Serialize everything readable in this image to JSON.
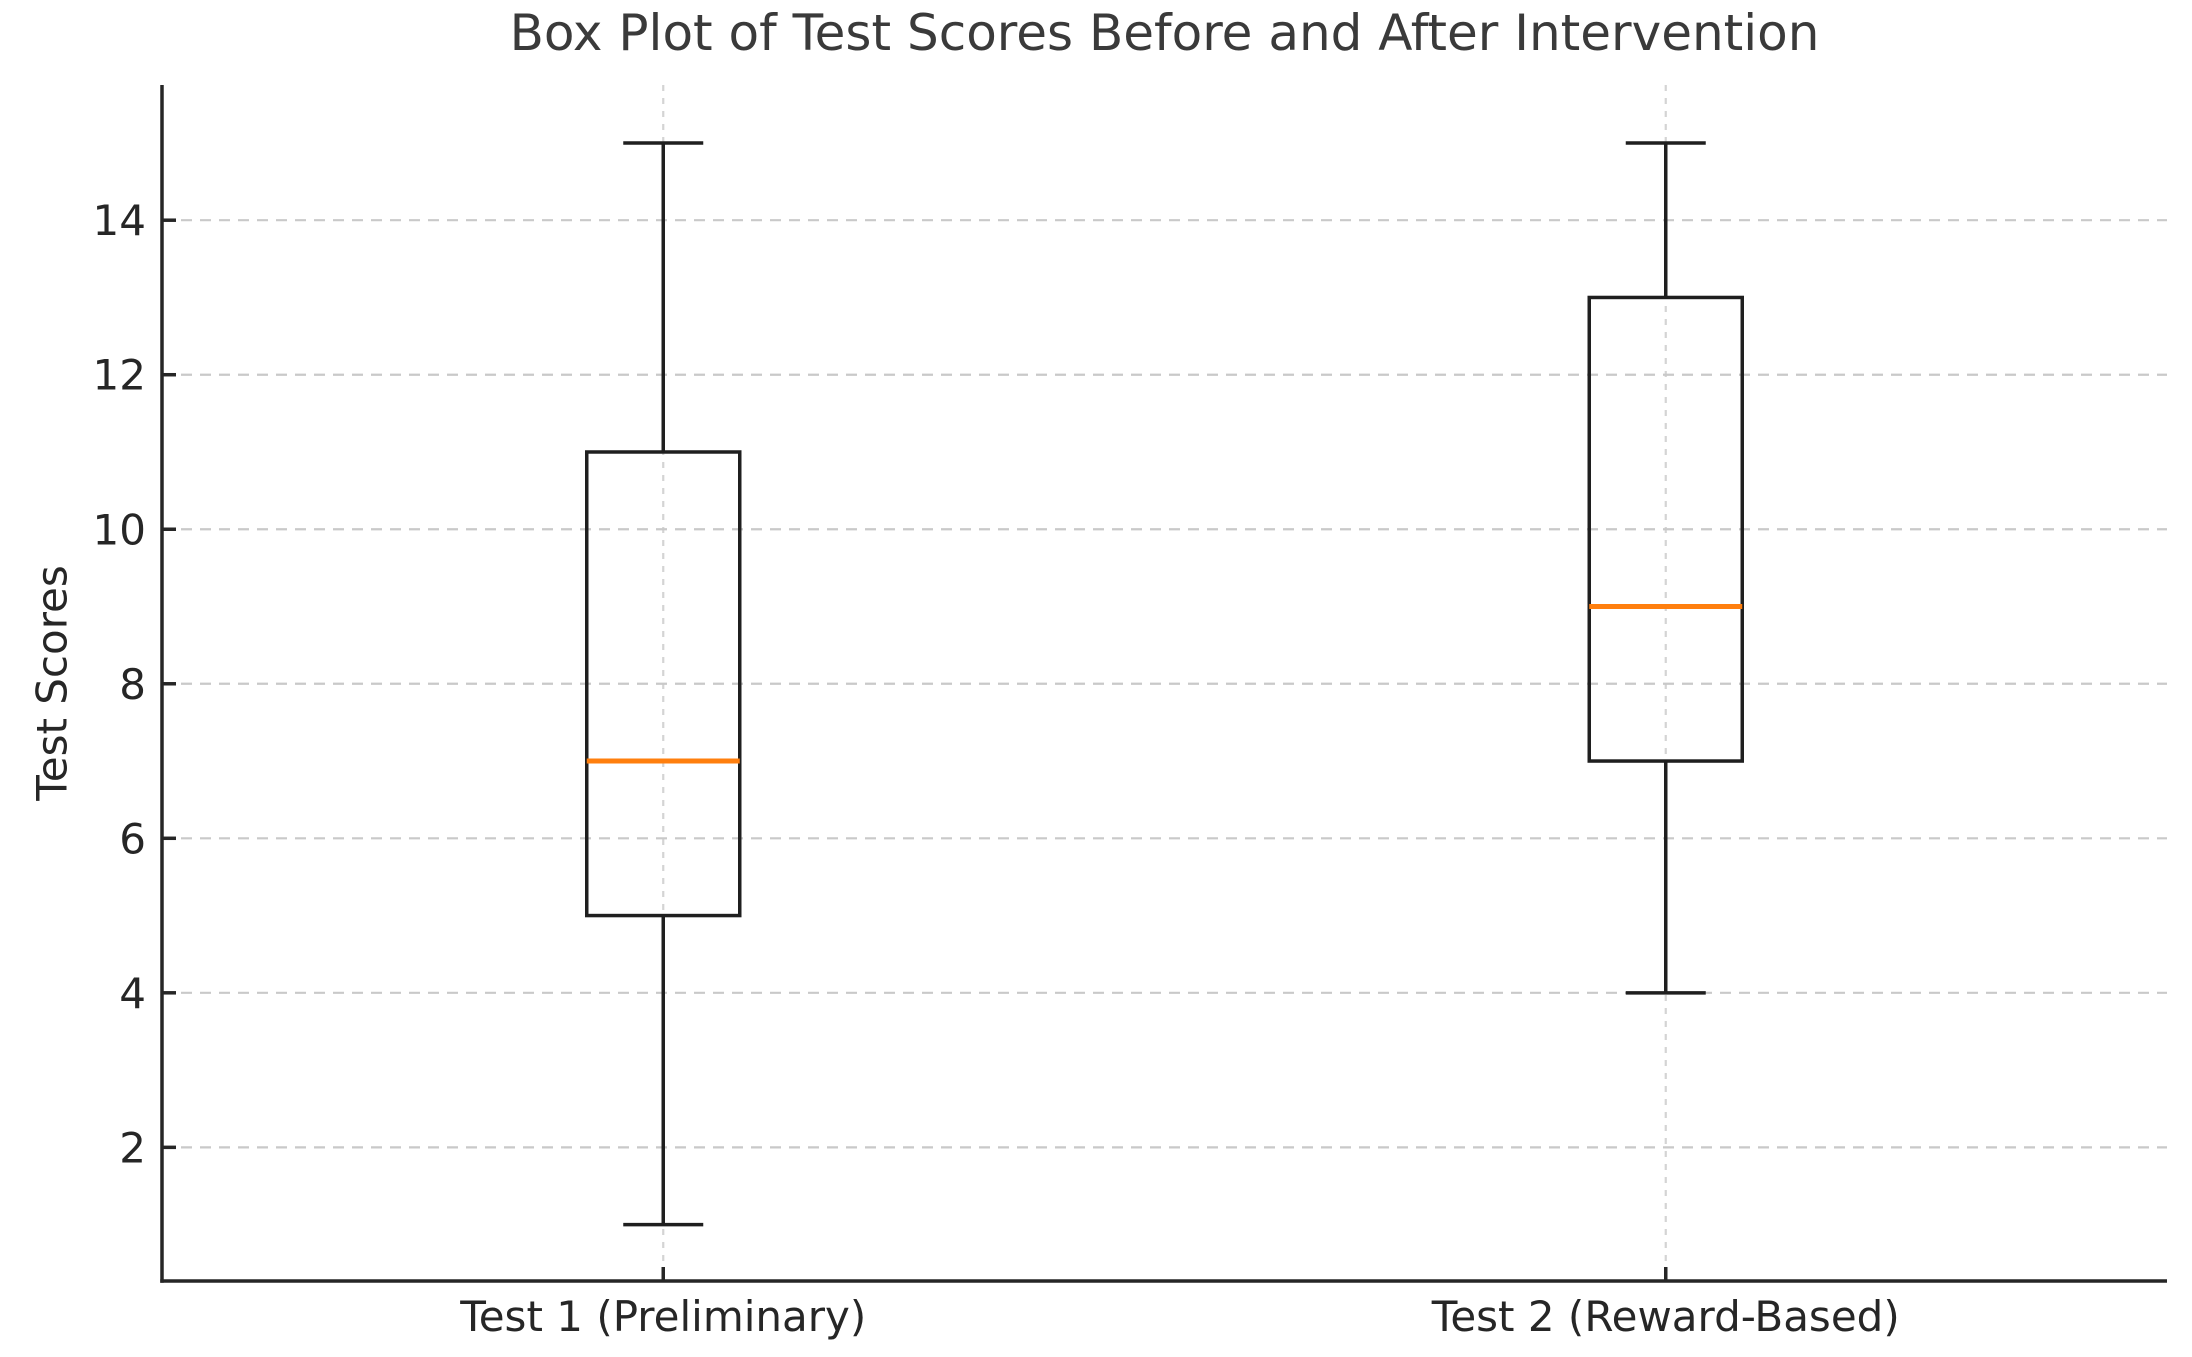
{
  "chart_data": {
    "type": "boxplot",
    "title": "Box Plot of Test Scores Before and After Intervention",
    "xlabel": "",
    "ylabel": "Test Scores",
    "categories": [
      "Test 1 (Preliminary)",
      "Test 2 (Reward-Based)"
    ],
    "series": [
      {
        "name": "Test 1 (Preliminary)",
        "whisker_low": 1,
        "q1": 5,
        "median": 7,
        "q3": 11,
        "whisker_high": 15
      },
      {
        "name": "Test 2 (Reward-Based)",
        "whisker_low": 4,
        "q1": 7,
        "median": 9,
        "q3": 13,
        "whisker_high": 15
      }
    ],
    "yticks": [
      2,
      4,
      6,
      8,
      10,
      12,
      14
    ],
    "ylim": [
      0.27,
      15.75
    ],
    "xlim_positions": [
      1,
      2
    ],
    "grid": {
      "horizontal": true,
      "vertical": true,
      "style": "dashed",
      "position": "behind"
    },
    "legend": "none",
    "colors": {
      "background": "#ffffff",
      "spine": "#262626",
      "tick_text": "#262626",
      "title_text": "#3a3a3a",
      "grid_line_h": "#c9c9c9",
      "grid_line_v": "#d4d4d4",
      "box_line": "#1f1f1f",
      "median_line": "#ff7f0e"
    }
  }
}
